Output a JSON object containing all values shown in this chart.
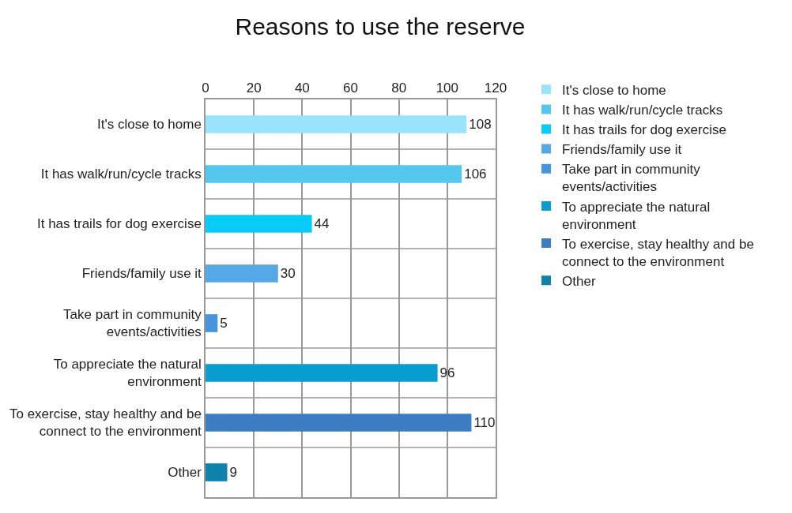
{
  "chart_data": {
    "type": "bar",
    "orientation": "horizontal",
    "title": "Reasons to use the reserve",
    "categories": [
      "It's close to home",
      "It has walk/run/cycle tracks",
      "It has trails for dog exercise",
      "Friends/family use it",
      "Take part in community events/activities",
      "To appreciate the natural environment",
      "To exercise, stay healthy and be connect to the environment",
      "Other"
    ],
    "series": [
      {
        "name": "It's close to home",
        "color": "#99e4fb",
        "values": [
          108,
          null,
          null,
          null,
          null,
          null,
          null,
          null
        ]
      },
      {
        "name": "It has walk/run/cycle tracks",
        "color": "#55c6ec",
        "values": [
          null,
          106,
          null,
          null,
          null,
          null,
          null,
          null
        ]
      },
      {
        "name": "It has trails for dog exercise",
        "color": "#08cbf8",
        "values": [
          null,
          null,
          44,
          null,
          null,
          null,
          null,
          null
        ]
      },
      {
        "name": "Friends/family use it",
        "color": "#55a8e6",
        "values": [
          null,
          null,
          null,
          30,
          null,
          null,
          null,
          null
        ]
      },
      {
        "name": "Take part in community events/activities",
        "color": "#4693de",
        "values": [
          null,
          null,
          null,
          null,
          5,
          null,
          null,
          null
        ]
      },
      {
        "name": "To appreciate the natural environment",
        "color": "#0a9ed0",
        "values": [
          null,
          null,
          null,
          null,
          null,
          96,
          null,
          null
        ]
      },
      {
        "name": "To exercise, stay healthy and be connect to the environment",
        "color": "#3b7fc2",
        "values": [
          null,
          null,
          null,
          null,
          null,
          null,
          110,
          null
        ]
      },
      {
        "name": "Other",
        "color": "#0e84ad",
        "values": [
          null,
          null,
          null,
          null,
          null,
          null,
          null,
          9
        ]
      }
    ],
    "xlim": [
      0,
      120
    ],
    "xticks": [
      0,
      20,
      40,
      60,
      80,
      100,
      120
    ],
    "grid": true,
    "legend": "right",
    "data_labels": true
  }
}
